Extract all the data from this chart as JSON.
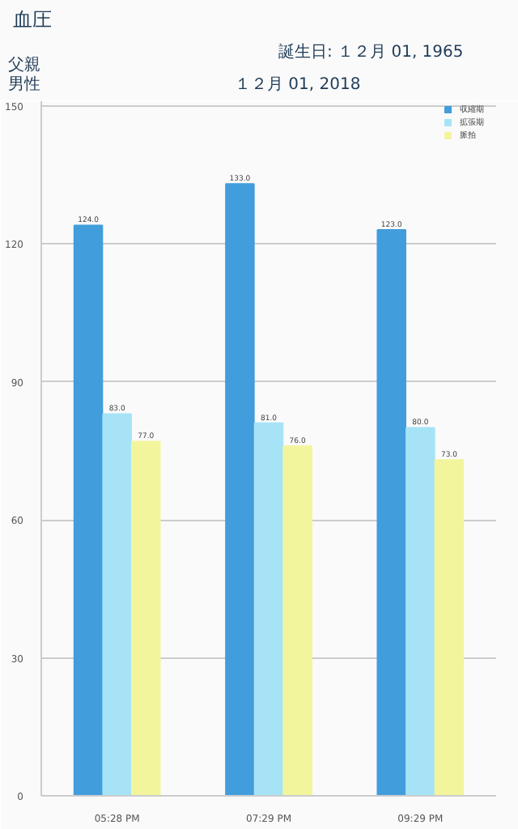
{
  "chart_data": {
    "type": "bar",
    "title": "血圧",
    "annotations": [
      "誕生日: １２月 01, 1965",
      "父親",
      "男性",
      "１２月 01, 2018"
    ],
    "categories": [
      "05:28 PM",
      "07:29 PM",
      "09:29 PM"
    ],
    "series": [
      {
        "name": "収縮期",
        "color": "#429ddc",
        "values": [
          124,
          133,
          123
        ],
        "value_labels": [
          "124.0",
          "133.0",
          "123.0"
        ]
      },
      {
        "name": "拡張期",
        "color": "#a6e3f7",
        "values": [
          83,
          81,
          80
        ],
        "value_labels": [
          "83.0",
          "81.0",
          "80.0"
        ]
      },
      {
        "name": "脈拍",
        "color": "#f2f59c",
        "values": [
          77,
          76,
          73
        ],
        "value_labels": [
          "77.0",
          "76.0",
          "73.0"
        ]
      }
    ],
    "ylim": [
      0,
      151
    ],
    "yticks": [
      0,
      30,
      60,
      90,
      120,
      150
    ],
    "grid": "y",
    "legend": "top right"
  }
}
